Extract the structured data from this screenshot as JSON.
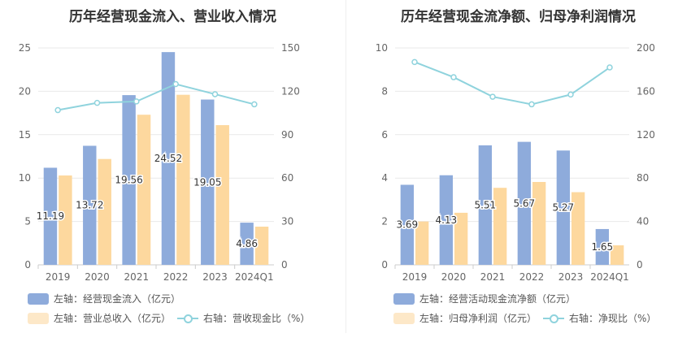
{
  "chart_data": [
    {
      "type": "bar",
      "title": "历年经营现金流入、营业收入情况",
      "categories": [
        "2019",
        "2020",
        "2021",
        "2022",
        "2023",
        "2024Q1"
      ],
      "left_axis": {
        "ylim": [
          0,
          25
        ],
        "ticks": [
          "0",
          "5",
          "10",
          "15",
          "20",
          "25"
        ]
      },
      "right_axis": {
        "ylim": [
          0,
          150
        ],
        "ticks": [
          "0",
          "30",
          "60",
          "90",
          "120",
          "150"
        ]
      },
      "series": [
        {
          "name": "左轴：经营现金流入（亿元）",
          "kind": "bar",
          "axis": "left",
          "color": "#8eabdb",
          "values": [
            11.19,
            13.72,
            19.56,
            24.52,
            19.05,
            4.86
          ],
          "labels": [
            "11.19",
            "13.72",
            "19.56",
            "24.52",
            "19.05",
            "4.86"
          ]
        },
        {
          "name": "左轴：营业总收入（亿元）",
          "kind": "bar",
          "axis": "left",
          "color": "#fdd89e",
          "values": [
            10.3,
            12.2,
            17.3,
            19.6,
            16.1,
            4.4
          ]
        },
        {
          "name": "右轴：营收现金比（%）",
          "kind": "line",
          "axis": "right",
          "color": "#8fd3dd",
          "values": [
            107,
            112,
            113,
            125,
            118,
            111
          ]
        }
      ]
    },
    {
      "type": "bar",
      "title": "历年经营现金流净额、归母净利润情况",
      "categories": [
        "2019",
        "2020",
        "2021",
        "2022",
        "2023",
        "2024Q1"
      ],
      "left_axis": {
        "ylim": [
          0,
          10
        ],
        "ticks": [
          "0",
          "2",
          "4",
          "6",
          "8",
          "10"
        ]
      },
      "right_axis": {
        "ylim": [
          0,
          200
        ],
        "ticks": [
          "0",
          "40",
          "80",
          "120",
          "160",
          "200"
        ]
      },
      "series": [
        {
          "name": "左轴：经营活动现金流净额（亿元）",
          "kind": "bar",
          "axis": "left",
          "color": "#8eabdb",
          "values": [
            3.69,
            4.13,
            5.51,
            5.67,
            5.27,
            1.65
          ],
          "labels": [
            "3.69",
            "4.13",
            "5.51",
            "5.67",
            "5.27",
            "1.65"
          ]
        },
        {
          "name": "左轴：归母净利润（亿元）",
          "kind": "bar",
          "axis": "left",
          "color": "#fdd89e",
          "values": [
            2.0,
            2.4,
            3.55,
            3.82,
            3.35,
            0.9
          ]
        },
        {
          "name": "右轴：净现比（%）",
          "kind": "line",
          "axis": "right",
          "color": "#8fd3dd",
          "values": [
            187,
            173,
            155,
            148,
            157,
            182
          ]
        }
      ]
    }
  ]
}
